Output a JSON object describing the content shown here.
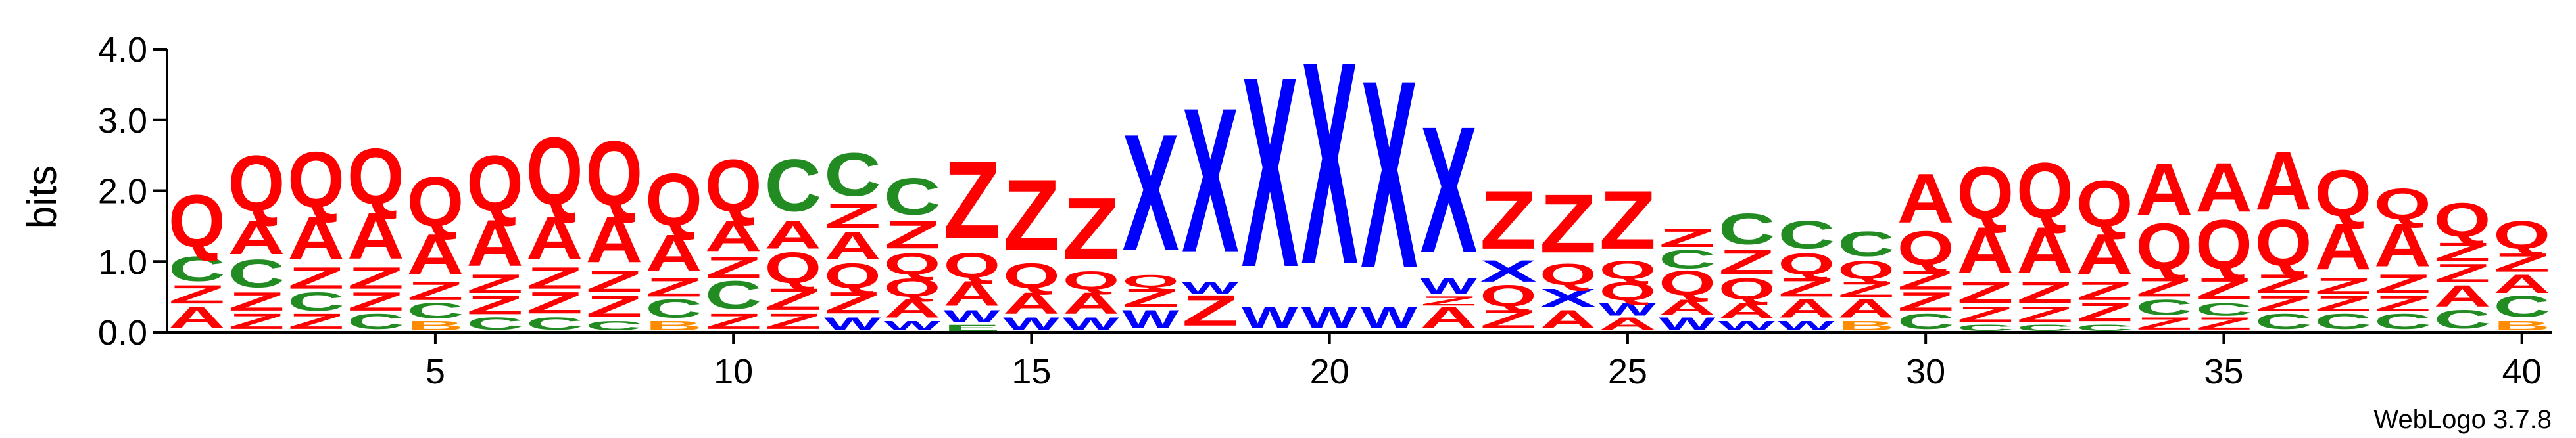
{
  "chart_data": {
    "type": "sequence-logo",
    "ylabel": "bits",
    "xlabel": "",
    "ylim": [
      0,
      4.0
    ],
    "yticks": [
      "0.0",
      "1.0",
      "2.0",
      "3.0",
      "4.0"
    ],
    "x_positions": [
      1,
      40
    ],
    "xticks": [
      "5",
      "10",
      "15",
      "20",
      "25",
      "30",
      "35",
      "40"
    ],
    "colors": {
      "Q": "#ff0000",
      "A": "#ff0000",
      "Z": "#ff0000",
      "C": "#228b22",
      "X": "#0000ff",
      "W": "#0000ff",
      "B": "#ff8c00",
      "E": "#228b22"
    },
    "columns": [
      [
        [
          "A",
          0.35
        ],
        [
          "Z",
          0.3
        ],
        [
          "C",
          0.4
        ],
        [
          "Q",
          0.85
        ]
      ],
      [
        [
          "Z",
          0.25
        ],
        [
          "Z",
          0.3
        ],
        [
          "C",
          0.45
        ],
        [
          "A",
          0.55
        ],
        [
          "Q",
          0.9
        ]
      ],
      [
        [
          "Z",
          0.25
        ],
        [
          "C",
          0.3
        ],
        [
          "Z",
          0.35
        ],
        [
          "A",
          0.7
        ],
        [
          "Q",
          0.9
        ]
      ],
      [
        [
          "C",
          0.25
        ],
        [
          "Z",
          0.3
        ],
        [
          "Z",
          0.35
        ],
        [
          "A",
          0.75
        ],
        [
          "Q",
          0.9
        ]
      ],
      [
        [
          "B",
          0.15
        ],
        [
          "C",
          0.25
        ],
        [
          "Z",
          0.3
        ],
        [
          "A",
          0.65
        ],
        [
          "Q",
          0.8
        ]
      ],
      [
        [
          "C",
          0.2
        ],
        [
          "Z",
          0.3
        ],
        [
          "Z",
          0.3
        ],
        [
          "A",
          0.75
        ],
        [
          "Q",
          0.9
        ]
      ],
      [
        [
          "C",
          0.2
        ],
        [
          "Z",
          0.35
        ],
        [
          "Z",
          0.35
        ],
        [
          "A",
          0.7
        ],
        [
          "Q",
          1.1
        ]
      ],
      [
        [
          "C",
          0.15
        ],
        [
          "Z",
          0.35
        ],
        [
          "Z",
          0.35
        ],
        [
          "A",
          0.75
        ],
        [
          "Q",
          1.05
        ]
      ],
      [
        [
          "B",
          0.15
        ],
        [
          "C",
          0.3
        ],
        [
          "Z",
          0.3
        ],
        [
          "A",
          0.6
        ],
        [
          "Q",
          0.85
        ]
      ],
      [
        [
          "Z",
          0.25
        ],
        [
          "C",
          0.45
        ],
        [
          "Z",
          0.35
        ],
        [
          "A",
          0.5
        ],
        [
          "Q",
          0.85
        ]
      ],
      [
        [
          "Z",
          0.25
        ],
        [
          "Z",
          0.35
        ],
        [
          "Q",
          0.5
        ],
        [
          "A",
          0.45
        ],
        [
          "C",
          0.85
        ]
      ],
      [
        [
          "W",
          0.2
        ],
        [
          "Z",
          0.35
        ],
        [
          "Q",
          0.4
        ],
        [
          "A",
          0.45
        ],
        [
          "Z",
          0.4
        ],
        [
          "C",
          0.7
        ]
      ],
      [
        [
          "W",
          0.15
        ],
        [
          "A",
          0.3
        ],
        [
          "Q",
          0.3
        ],
        [
          "Q",
          0.35
        ],
        [
          "Z",
          0.45
        ],
        [
          "C",
          0.6
        ]
      ],
      [
        [
          "E",
          0.1
        ],
        [
          "W",
          0.2
        ],
        [
          "A",
          0.4
        ],
        [
          "Q",
          0.4
        ],
        [
          "Z",
          1.25
        ]
      ],
      [
        [
          "W",
          0.2
        ],
        [
          "A",
          0.35
        ],
        [
          "Q",
          0.4
        ],
        [
          "Z",
          1.15
        ]
      ],
      [
        [
          "W",
          0.2
        ],
        [
          "A",
          0.35
        ],
        [
          "Q",
          0.3
        ],
        [
          "Z",
          1.0
        ]
      ],
      [
        [
          "W",
          0.3
        ],
        [
          "Z",
          0.3
        ],
        [
          "Q",
          0.2
        ],
        [
          "X",
          1.9
        ]
      ],
      [
        [
          "Z",
          0.5
        ],
        [
          "W",
          0.2
        ],
        [
          "X",
          2.35
        ]
      ],
      [
        [
          "W",
          0.35
        ],
        [
          "X",
          3.1
        ]
      ],
      [
        [
          "W",
          0.35
        ],
        [
          "X",
          3.3
        ]
      ],
      [
        [
          "W",
          0.35
        ],
        [
          "X",
          3.05
        ]
      ],
      [
        [
          "A",
          0.35
        ],
        [
          "Z",
          0.15
        ],
        [
          "W",
          0.25
        ],
        [
          "X",
          2.05
        ]
      ],
      [
        [
          "Z",
          0.3
        ],
        [
          "Q",
          0.35
        ],
        [
          "X",
          0.35
        ],
        [
          "Z",
          0.95
        ]
      ],
      [
        [
          "A",
          0.3
        ],
        [
          "X",
          0.3
        ],
        [
          "Q",
          0.35
        ],
        [
          "Z",
          0.95
        ]
      ],
      [
        [
          "A",
          0.2
        ],
        [
          "W",
          0.2
        ],
        [
          "Q",
          0.3
        ],
        [
          "Q",
          0.3
        ],
        [
          "Z",
          0.95
        ]
      ],
      [
        [
          "W",
          0.2
        ],
        [
          "A",
          0.25
        ],
        [
          "Q",
          0.4
        ],
        [
          "C",
          0.3
        ],
        [
          "Z",
          0.3
        ]
      ],
      [
        [
          "W",
          0.15
        ],
        [
          "A",
          0.25
        ],
        [
          "Q",
          0.35
        ],
        [
          "Z",
          0.4
        ],
        [
          "C",
          0.5
        ]
      ],
      [
        [
          "W",
          0.15
        ],
        [
          "A",
          0.3
        ],
        [
          "Z",
          0.3
        ],
        [
          "Q",
          0.35
        ],
        [
          "C",
          0.45
        ]
      ],
      [
        [
          "B",
          0.15
        ],
        [
          "A",
          0.3
        ],
        [
          "Z",
          0.25
        ],
        [
          "Q",
          0.3
        ],
        [
          "C",
          0.4
        ]
      ],
      [
        [
          "C",
          0.25
        ],
        [
          "Z",
          0.3
        ],
        [
          "Z",
          0.3
        ],
        [
          "Q",
          0.55
        ],
        [
          "A",
          0.8
        ]
      ],
      [
        [
          "C",
          0.1
        ],
        [
          "Z",
          0.25
        ],
        [
          "Z",
          0.35
        ],
        [
          "A",
          0.75
        ],
        [
          "Q",
          0.85
        ]
      ],
      [
        [
          "C",
          0.1
        ],
        [
          "Z",
          0.25
        ],
        [
          "Z",
          0.35
        ],
        [
          "A",
          0.75
        ],
        [
          "Q",
          0.9
        ]
      ],
      [
        [
          "C",
          0.1
        ],
        [
          "Z",
          0.3
        ],
        [
          "Z",
          0.3
        ],
        [
          "A",
          0.65
        ],
        [
          "Q",
          0.75
        ]
      ],
      [
        [
          "Z",
          0.2
        ],
        [
          "C",
          0.25
        ],
        [
          "Z",
          0.3
        ],
        [
          "Q",
          0.75
        ],
        [
          "A",
          0.85
        ]
      ],
      [
        [
          "Z",
          0.2
        ],
        [
          "C",
          0.2
        ],
        [
          "Z",
          0.35
        ],
        [
          "Q",
          0.8
        ],
        [
          "A",
          0.8
        ]
      ],
      [
        [
          "C",
          0.25
        ],
        [
          "Z",
          0.25
        ],
        [
          "Z",
          0.3
        ],
        [
          "Q",
          0.75
        ],
        [
          "A",
          0.95
        ]
      ],
      [
        [
          "C",
          0.25
        ],
        [
          "Z",
          0.25
        ],
        [
          "Z",
          0.25
        ],
        [
          "A",
          0.75
        ],
        [
          "Q",
          0.75
        ]
      ],
      [
        [
          "C",
          0.25
        ],
        [
          "Z",
          0.25
        ],
        [
          "Z",
          0.3
        ],
        [
          "A",
          0.7
        ],
        [
          "Q",
          0.5
        ]
      ],
      [
        [
          "C",
          0.3
        ],
        [
          "A",
          0.35
        ],
        [
          "Z",
          0.3
        ],
        [
          "Z",
          0.3
        ],
        [
          "Q",
          0.55
        ]
      ],
      [
        [
          "B",
          0.15
        ],
        [
          "C",
          0.35
        ],
        [
          "A",
          0.3
        ],
        [
          "Z",
          0.3
        ],
        [
          "Q",
          0.45
        ]
      ]
    ]
  },
  "footer_text": "WebLogo 3.7.8"
}
